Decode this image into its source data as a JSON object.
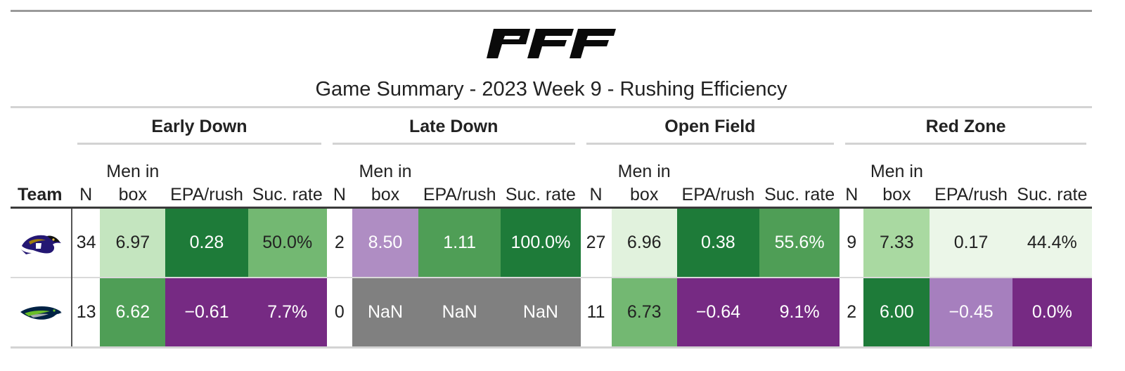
{
  "header": {
    "logo_text": "PFF",
    "title": "Game Summary - 2023 Week 9 - Rushing Efficiency"
  },
  "table": {
    "team_header": "Team",
    "groups": [
      "Early Down",
      "Late Down",
      "Open Field",
      "Red Zone"
    ],
    "columns": {
      "n": "N",
      "men_line1": "Men in",
      "men_line2": "box",
      "epa": "EPA/rush",
      "suc": "Suc. rate"
    },
    "rows": [
      {
        "team": "Baltimore Ravens",
        "logo": "ravens-logo",
        "cells": [
          {
            "n": "34",
            "men": "6.97",
            "epa": "0.28",
            "suc": "50.0%"
          },
          {
            "n": "2",
            "men": "8.50",
            "epa": "1.11",
            "suc": "100.0%"
          },
          {
            "n": "27",
            "men": "6.96",
            "epa": "0.38",
            "suc": "55.6%"
          },
          {
            "n": "9",
            "men": "7.33",
            "epa": "0.17",
            "suc": "44.4%"
          }
        ],
        "colors": [
          {
            "men": "#c4e5bf",
            "epa": "#1e7b39",
            "suc": "#73b872"
          },
          {
            "men": "#af8dc3",
            "epa": "#4f9e56",
            "suc": "#1e7b39"
          },
          {
            "men": "#e1f2dd",
            "epa": "#1e7b39",
            "suc": "#4f9e56"
          },
          {
            "men": "#a9d9a1",
            "epa": "#ebf6e8",
            "suc": "#ebf6e8"
          }
        ],
        "text_colors": [
          {
            "men": "#222222",
            "epa": "#ffffff",
            "suc": "#222222"
          },
          {
            "men": "#ffffff",
            "epa": "#ffffff",
            "suc": "#ffffff"
          },
          {
            "men": "#222222",
            "epa": "#ffffff",
            "suc": "#ffffff"
          },
          {
            "men": "#222222",
            "epa": "#222222",
            "suc": "#222222"
          }
        ]
      },
      {
        "team": "Seattle Seahawks",
        "logo": "seahawks-logo",
        "cells": [
          {
            "n": "13",
            "men": "6.62",
            "epa": "−0.61",
            "suc": "7.7%"
          },
          {
            "n": "0",
            "men": "NaN",
            "epa": "NaN",
            "suc": "NaN"
          },
          {
            "n": "11",
            "men": "6.73",
            "epa": "−0.64",
            "suc": "9.1%"
          },
          {
            "n": "2",
            "men": "6.00",
            "epa": "−0.45",
            "suc": "0.0%"
          }
        ],
        "colors": [
          {
            "men": "#4f9e56",
            "epa": "#762a83",
            "suc": "#762a83"
          },
          {
            "men": "#808080",
            "epa": "#808080",
            "suc": "#808080"
          },
          {
            "men": "#73b872",
            "epa": "#762a83",
            "suc": "#762a83"
          },
          {
            "men": "#1e7b39",
            "epa": "#a67fbe",
            "suc": "#762a83"
          }
        ],
        "text_colors": [
          {
            "men": "#ffffff",
            "epa": "#ffffff",
            "suc": "#ffffff"
          },
          {
            "men": "#ffffff",
            "epa": "#ffffff",
            "suc": "#ffffff"
          },
          {
            "men": "#222222",
            "epa": "#ffffff",
            "suc": "#ffffff"
          },
          {
            "men": "#ffffff",
            "epa": "#ffffff",
            "suc": "#ffffff"
          }
        ]
      }
    ]
  }
}
